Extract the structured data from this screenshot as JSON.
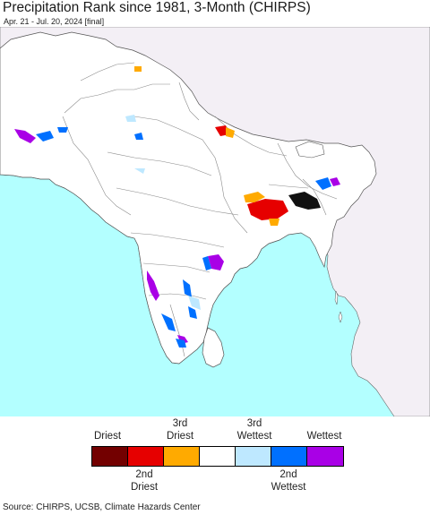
{
  "title": "Precipitation Rank since 1981, 3-Month (CHIRPS)",
  "subtitle": "Apr. 21 - Jul. 20, 2024 [final]",
  "source": "Source: CHIRPS, UCSB, Climate Hazards Center",
  "colors": {
    "ocean": "#b3ffff",
    "outside_land": "#f3eff5",
    "land": "#ffffff",
    "border": "#666666"
  },
  "legend": {
    "top_labels": [
      {
        "line1": "",
        "line2": "Driest"
      },
      {
        "line1": "3rd",
        "line2": "Driest"
      },
      {
        "line1": "3rd",
        "line2": "Wettest"
      },
      {
        "line1": "",
        "line2": "Wettest"
      }
    ],
    "bottom_labels": [
      {
        "line1": "2nd",
        "line2": "Driest"
      },
      {
        "line1": "2nd",
        "line2": "Wettest"
      }
    ],
    "classes": [
      {
        "name": "Driest",
        "color": "#730000"
      },
      {
        "name": "2nd Driest",
        "color": "#e60000"
      },
      {
        "name": "3rd Driest",
        "color": "#ffaa00"
      },
      {
        "name": "Normal",
        "color": "#ffffff"
      },
      {
        "name": "3rd Wettest",
        "color": "#bee8ff"
      },
      {
        "name": "2nd Wettest",
        "color": "#0070ff"
      },
      {
        "name": "Wettest",
        "color": "#a900e6"
      }
    ]
  }
}
